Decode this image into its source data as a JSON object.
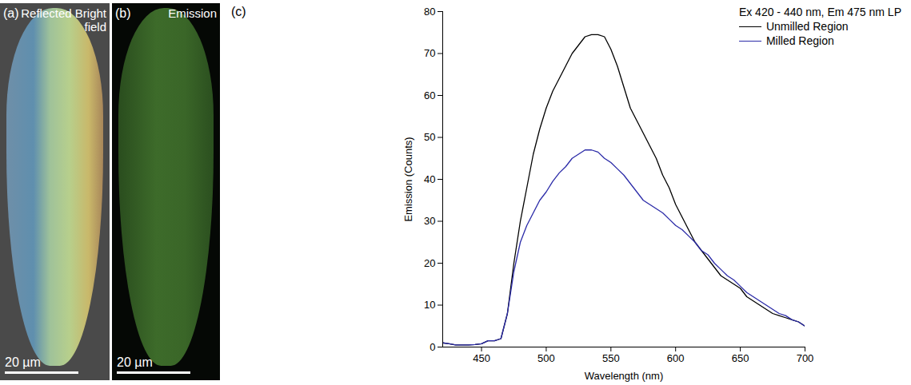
{
  "panels": [
    {
      "letter": "(a)",
      "label": "Reflected Bright field",
      "scale_bar": "20 µm"
    },
    {
      "letter": "(b)",
      "label": "Emission",
      "scale_bar": "20 µm"
    }
  ],
  "chart_data": {
    "letter": "(c)",
    "type": "line",
    "title": "Ex 420 - 440 nm, Em 475 nm LP",
    "x_label": "Wavelength (nm)",
    "y_label": "Emission (Counts)",
    "x": [
      420,
      425,
      430,
      435,
      440,
      445,
      450,
      455,
      460,
      465,
      470,
      475,
      480,
      485,
      490,
      495,
      500,
      505,
      510,
      515,
      520,
      525,
      530,
      535,
      540,
      545,
      550,
      555,
      560,
      565,
      570,
      575,
      580,
      585,
      590,
      595,
      600,
      605,
      610,
      615,
      620,
      625,
      630,
      635,
      640,
      645,
      650,
      655,
      660,
      665,
      670,
      675,
      680,
      685,
      690,
      695,
      700
    ],
    "series": [
      {
        "name": "Unmilled Region",
        "color": "#000000",
        "values": [
          1,
          0.8,
          0.5,
          0.5,
          0.5,
          0.6,
          0.8,
          1.5,
          1.5,
          2,
          8,
          20,
          30,
          38,
          46,
          52,
          57,
          61,
          64,
          67,
          70,
          72,
          74,
          74.5,
          74.5,
          74,
          71,
          67,
          62,
          57,
          54,
          51,
          48,
          45,
          41,
          38,
          34,
          31,
          28,
          25,
          23,
          21,
          19,
          17,
          16,
          15,
          14,
          12,
          11,
          10,
          9,
          8,
          7.5,
          7,
          6.5,
          6,
          5
        ]
      },
      {
        "name": "Milled Region",
        "color": "#2b2ba8",
        "values": [
          1,
          0.8,
          0.5,
          0.5,
          0.5,
          0.6,
          0.8,
          1.5,
          1.5,
          2,
          8,
          18,
          25,
          29,
          32,
          35,
          37,
          39.5,
          41.5,
          43,
          45,
          46,
          47,
          47,
          46.5,
          45,
          44,
          42.5,
          41,
          39,
          37,
          35,
          34,
          33,
          32,
          30.5,
          29,
          28,
          26.5,
          25,
          23,
          22,
          20,
          18.5,
          17,
          16,
          14.5,
          13,
          12,
          11,
          10,
          9,
          8,
          7.5,
          6.5,
          6,
          5
        ]
      }
    ],
    "xlim": [
      420,
      700
    ],
    "xticks": [
      450,
      500,
      550,
      600,
      650,
      700
    ],
    "ylim": [
      0,
      80
    ],
    "yticks": [
      0,
      10,
      20,
      30,
      40,
      50,
      60,
      70,
      80
    ],
    "legend": "top-right"
  }
}
